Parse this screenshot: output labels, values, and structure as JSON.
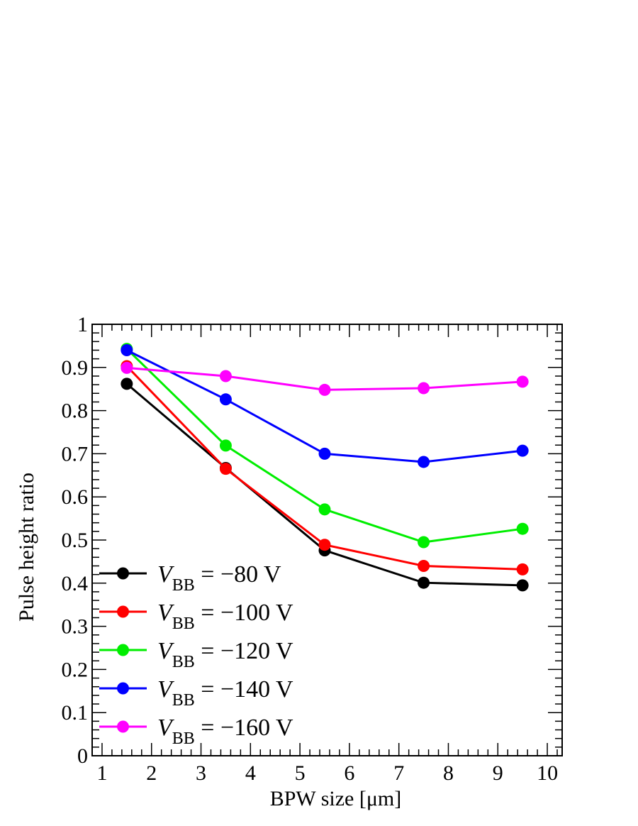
{
  "chart_data": {
    "type": "line",
    "title": "",
    "xlabel": "BPW size [μm]",
    "ylabel": "Pulse height ratio",
    "xlim": [
      0.8,
      10.3
    ],
    "ylim": [
      0,
      1
    ],
    "x_ticks": [
      1,
      2,
      3,
      4,
      5,
      6,
      7,
      8,
      9,
      10
    ],
    "y_ticks": [
      0,
      0.1,
      0.2,
      0.3,
      0.4,
      0.5,
      0.6,
      0.7,
      0.8,
      0.9,
      1
    ],
    "x_tick_labels": [
      "1",
      "2",
      "3",
      "4",
      "5",
      "6",
      "7",
      "8",
      "9",
      "10"
    ],
    "y_tick_labels": [
      "0",
      "0.1",
      "0.2",
      "0.3",
      "0.4",
      "0.5",
      "0.6",
      "0.7",
      "0.8",
      "0.9",
      "1"
    ],
    "x": [
      1.5,
      3.5,
      5.5,
      7.5,
      9.5
    ],
    "legend_position": "bottom-left",
    "series": [
      {
        "name": "V_BB = −80 V",
        "symbol": "V",
        "subscript": "BB",
        "label_rest": " = −80 V",
        "color": "#000000",
        "values": [
          0.862,
          0.667,
          0.476,
          0.401,
          0.395
        ]
      },
      {
        "name": "V_BB = −100 V",
        "symbol": "V",
        "subscript": "BB",
        "label_rest": " = −100 V",
        "color": "#ff0000",
        "values": [
          0.903,
          0.665,
          0.489,
          0.44,
          0.432
        ]
      },
      {
        "name": "V_BB = −120 V",
        "symbol": "V",
        "subscript": "BB",
        "label_rest": " = −120 V",
        "color": "#00ee00",
        "values": [
          0.943,
          0.719,
          0.571,
          0.495,
          0.526
        ]
      },
      {
        "name": "V_BB = −140 V",
        "symbol": "V",
        "subscript": "BB",
        "label_rest": " = −140 V",
        "color": "#0000ff",
        "values": [
          0.94,
          0.826,
          0.7,
          0.681,
          0.707
        ]
      },
      {
        "name": "V_BB = −160 V",
        "symbol": "V",
        "subscript": "BB",
        "label_rest": " = −160 V",
        "color": "#ff00ff",
        "values": [
          0.899,
          0.88,
          0.848,
          0.852,
          0.867
        ]
      }
    ]
  }
}
